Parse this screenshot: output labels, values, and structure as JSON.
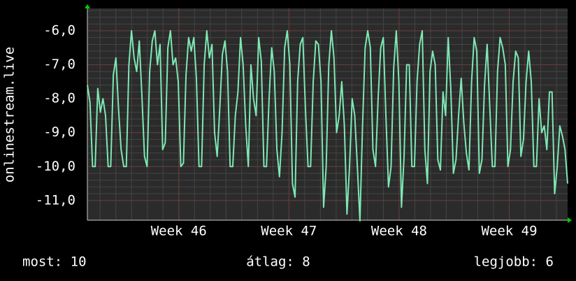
{
  "chart_data": {
    "type": "line",
    "y_label": "onlinestream.live",
    "series": [
      {
        "name": "onlinestream.live",
        "color": "#7de8b4",
        "values": [
          -7.6,
          -8.1,
          -10.0,
          -10.0,
          -7.7,
          -8.4,
          -8.0,
          -8.5,
          -10.0,
          -10.0,
          -7.3,
          -6.8,
          -8.3,
          -9.5,
          -10.0,
          -10.0,
          -7.0,
          -6.0,
          -6.8,
          -7.2,
          -6.3,
          -7.9,
          -9.7,
          -10.0,
          -7.2,
          -6.3,
          -6.0,
          -7.0,
          -6.4,
          -9.5,
          -9.3,
          -6.5,
          -6.0,
          -7.0,
          -6.8,
          -7.5,
          -10.0,
          -9.9,
          -7.3,
          -6.2,
          -6.6,
          -6.2,
          -7.4,
          -10.0,
          -10.0,
          -7.0,
          -6.0,
          -6.8,
          -6.4,
          -9.0,
          -9.7,
          -8.3,
          -6.7,
          -6.3,
          -7.2,
          -10.0,
          -10.0,
          -8.5,
          -7.8,
          -6.2,
          -7.0,
          -8.8,
          -10.0,
          -7.0,
          -8.0,
          -8.5,
          -6.2,
          -6.9,
          -10.0,
          -10.0,
          -8.0,
          -6.5,
          -7.2,
          -9.5,
          -10.3,
          -9.0,
          -6.5,
          -6.0,
          -7.0,
          -10.5,
          -10.9,
          -7.5,
          -6.4,
          -6.2,
          -8.3,
          -10.0,
          -10.0,
          -7.5,
          -6.3,
          -6.4,
          -7.5,
          -11.2,
          -10.0,
          -7.0,
          -6.0,
          -6.8,
          -9.0,
          -8.5,
          -7.5,
          -8.8,
          -11.4,
          -10.0,
          -8.0,
          -8.5,
          -10.0,
          -11.6,
          -8.8,
          -6.5,
          -6.0,
          -6.5,
          -9.5,
          -10.0,
          -8.0,
          -6.5,
          -6.2,
          -8.5,
          -10.6,
          -10.0,
          -7.1,
          -6.0,
          -7.5,
          -11.2,
          -9.7,
          -7.0,
          -7.0,
          -10.0,
          -10.0,
          -7.5,
          -6.4,
          -6.0,
          -9.5,
          -10.5,
          -7.2,
          -6.6,
          -7.0,
          -9.8,
          -10.1,
          -7.8,
          -8.5,
          -6.2,
          -7.7,
          -10.2,
          -9.8,
          -8.5,
          -7.4,
          -8.7,
          -9.6,
          -10.1,
          -7.5,
          -6.2,
          -6.6,
          -10.2,
          -9.8,
          -7.6,
          -6.4,
          -8.2,
          -10.0,
          -10.0,
          -7.2,
          -6.2,
          -6.5,
          -7.0,
          -10.0,
          -9.5,
          -7.5,
          -6.6,
          -6.8,
          -9.7,
          -9.2,
          -7.5,
          -6.6,
          -7.5,
          -10.0,
          -10.0,
          -8.0,
          -9.0,
          -8.8,
          -9.5,
          -7.8,
          -7.8,
          -10.8,
          -10.0,
          -8.8,
          -9.1,
          -9.5,
          -10.5
        ]
      }
    ],
    "xlim": [
      45.17,
      49.53
    ],
    "xticks": [
      {
        "value": 46,
        "label": "Week 46"
      },
      {
        "value": 47,
        "label": "Week 47"
      },
      {
        "value": 48,
        "label": "Week 48"
      },
      {
        "value": 49,
        "label": "Week 49"
      }
    ],
    "ylim": [
      -11.58,
      -5.34
    ],
    "yticks": [
      {
        "value": -6,
        "label": "-6,0"
      },
      {
        "value": -7,
        "label": "-7,0"
      },
      {
        "value": -8,
        "label": "-8,0"
      },
      {
        "value": -9,
        "label": "-9,0"
      },
      {
        "value": -10,
        "label": "-10,0"
      },
      {
        "value": -11,
        "label": "-11,0"
      }
    ],
    "grid": true,
    "stats": [
      "most: 10",
      "átlag: 8",
      "legjobb: 6"
    ]
  }
}
